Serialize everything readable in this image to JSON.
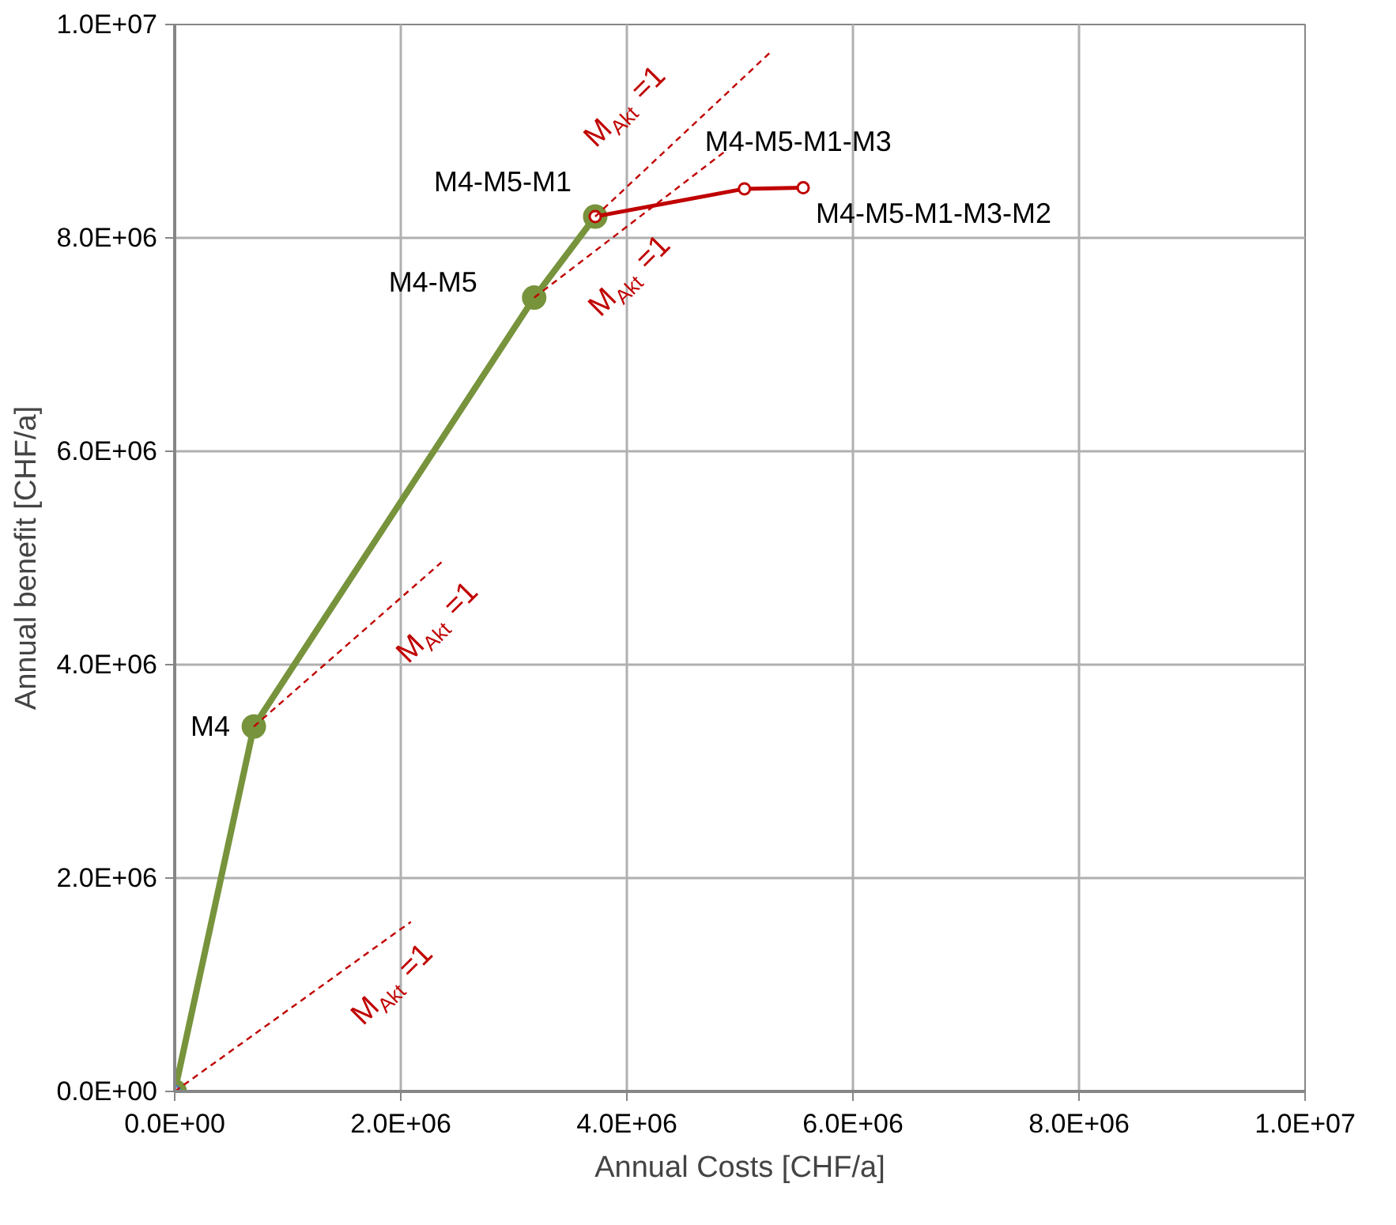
{
  "chart_data": {
    "type": "line",
    "xlabel": "Annual Costs [CHF/a]",
    "ylabel": "Annual benefit [CHF/a]",
    "xlim": [
      0,
      10000000
    ],
    "ylim": [
      0,
      10000000
    ],
    "xticks": [
      {
        "value": 0,
        "label": "0.0E+00"
      },
      {
        "value": 2000000,
        "label": "2.0E+06"
      },
      {
        "value": 4000000,
        "label": "4.0E+06"
      },
      {
        "value": 6000000,
        "label": "6.0E+06"
      },
      {
        "value": 8000000,
        "label": "8.0E+06"
      },
      {
        "value": 10000000,
        "label": "1.0E+07"
      }
    ],
    "yticks": [
      {
        "value": 0,
        "label": "0.0E+00"
      },
      {
        "value": 2000000,
        "label": "2.0E+06"
      },
      {
        "value": 4000000,
        "label": "4.0E+06"
      },
      {
        "value": 6000000,
        "label": "6.0E+06"
      },
      {
        "value": 8000000,
        "label": "8.0E+06"
      },
      {
        "value": 10000000,
        "label": "1.0E+07"
      }
    ],
    "grid": true,
    "legend": false,
    "series": [
      {
        "color": "#77933c",
        "marker": "circle",
        "line_style": "solid",
        "x": [
          0,
          700000,
          3180000,
          3720000
        ],
        "values": [
          0,
          3420000,
          7440000,
          8200000
        ]
      },
      {
        "color": "#c00000",
        "marker": "circle",
        "line_style": "solid",
        "x": [
          3720000,
          5040000,
          5560000
        ],
        "values": [
          8200000,
          8460000,
          8470000
        ]
      },
      {
        "type": "scatter",
        "color": "#4f81bd",
        "marker": "circle",
        "x": [
          0
        ],
        "values": [
          0
        ]
      },
      {
        "color": "#c00000",
        "marker": "none",
        "line_style": "dashed",
        "x": [
          0,
          2090000
        ],
        "values": [
          0,
          1590000
        ]
      },
      {
        "color": "#c00000",
        "marker": "none",
        "line_style": "dashed",
        "x": [
          700000,
          2360000
        ],
        "values": [
          3420000,
          4960000
        ]
      },
      {
        "color": "#c00000",
        "marker": "none",
        "line_style": "dashed",
        "x": [
          3180000,
          4880000
        ],
        "values": [
          7440000,
          8820000
        ]
      },
      {
        "color": "#c00000",
        "marker": "none",
        "line_style": "dashed",
        "x": [
          3720000,
          5260000
        ],
        "values": [
          8200000,
          9730000
        ]
      }
    ],
    "annotations": [
      {
        "text": "M4",
        "x": 700000,
        "y": 3420000
      },
      {
        "text": "M4-M5",
        "x": 3180000,
        "y": 7440000
      },
      {
        "text": "M4-M5-M1",
        "x": 3720000,
        "y": 8200000
      },
      {
        "text": "M4-M5-M1-M3",
        "x": 5040000,
        "y": 8460000
      },
      {
        "text": "M4-M5-M1-M3-M2",
        "x": 5560000,
        "y": 8470000
      },
      {
        "text": "M$_{Akt}$ =1",
        "x": 1500000,
        "y": 1141000
      },
      {
        "text": "M$_{Akt}$ =1",
        "x": 1900000,
        "y": 4533000
      },
      {
        "text": "M$_{Akt}$ =1",
        "x": 3600000,
        "y": 7781000
      },
      {
        "text": "M$_{Akt}$ =1",
        "x": 4300000,
        "y": 8776000
      }
    ]
  }
}
